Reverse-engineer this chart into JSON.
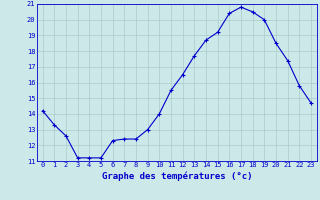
{
  "hours": [
    0,
    1,
    2,
    3,
    4,
    5,
    6,
    7,
    8,
    9,
    10,
    11,
    12,
    13,
    14,
    15,
    16,
    17,
    18,
    19,
    20,
    21,
    22,
    23
  ],
  "temperatures": [
    14.2,
    13.3,
    12.6,
    11.2,
    11.2,
    11.2,
    12.3,
    12.4,
    12.4,
    13.0,
    14.0,
    15.5,
    16.5,
    17.7,
    18.7,
    19.2,
    20.4,
    20.8,
    20.5,
    20.0,
    18.5,
    17.4,
    15.8,
    14.7
  ],
  "line_color": "#0000cc",
  "marker": "+",
  "marker_size": 3,
  "marker_linewidth": 0.8,
  "bg_color": "#cce8e8",
  "grid_color": "#aacccc",
  "xlabel": "Graphe des températures (°c)",
  "tick_color": "#0000cc",
  "xlim": [
    -0.5,
    23.5
  ],
  "ylim": [
    11,
    21
  ],
  "yticks": [
    11,
    12,
    13,
    14,
    15,
    16,
    17,
    18,
    19,
    20,
    21
  ],
  "xticks": [
    0,
    1,
    2,
    3,
    4,
    5,
    6,
    7,
    8,
    9,
    10,
    11,
    12,
    13,
    14,
    15,
    16,
    17,
    18,
    19,
    20,
    21,
    22,
    23
  ],
  "spine_color": "#0000cc",
  "tick_fontsize": 5.0,
  "xlabel_fontsize": 6.5,
  "linewidth": 0.8
}
